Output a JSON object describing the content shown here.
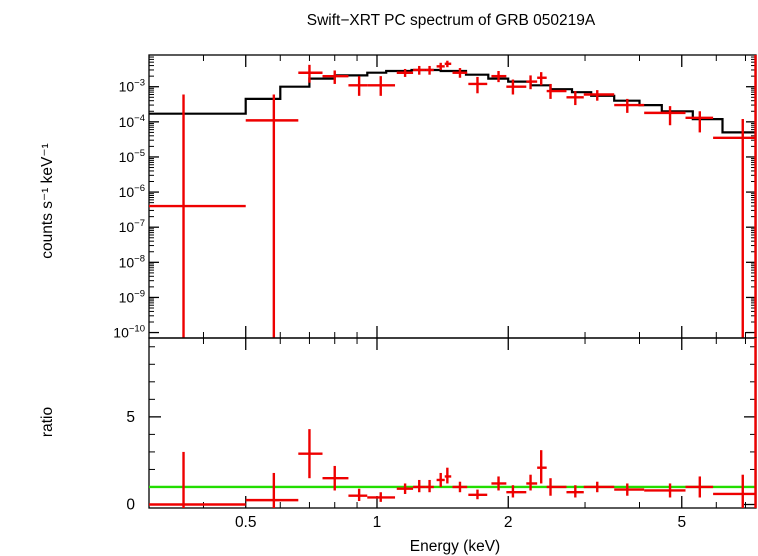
{
  "chart_data": [
    {
      "type": "scatter",
      "title": "Swift−XRT PC spectrum of GRB 050219A",
      "ylabel": "counts s⁻¹ keV⁻¹",
      "xlabel": "",
      "xscale": "log",
      "yscale": "log",
      "xlim": [
        0.3,
        7.4
      ],
      "ylim": [
        7e-11,
        0.008
      ],
      "x_ticks": [
        "0.5",
        "1",
        "2",
        "5"
      ],
      "y_ticks": [
        {
          "value": 0.001,
          "mant": "10",
          "exp": "−3"
        },
        {
          "value": 0.0001,
          "mant": "10",
          "exp": "−4"
        },
        {
          "value": 1e-05,
          "mant": "10",
          "exp": "−5"
        },
        {
          "value": 1e-06,
          "mant": "10",
          "exp": "−6"
        },
        {
          "value": 1e-07,
          "mant": "10",
          "exp": "−7"
        },
        {
          "value": 1e-08,
          "mant": "10",
          "exp": "−8"
        },
        {
          "value": 1e-09,
          "mant": "10",
          "exp": "−9"
        },
        {
          "value": 1e-10,
          "mant": "10",
          "exp": "−10"
        }
      ],
      "colors": {
        "data": "#ee0000",
        "model": "#000000"
      },
      "data_points": [
        {
          "x": 0.36,
          "xlo": 0.3,
          "xhi": 0.5,
          "y": 4e-07,
          "ylo": 7e-11,
          "yhi": 0.0006
        },
        {
          "x": 0.58,
          "xlo": 0.5,
          "xhi": 0.66,
          "y": 0.00011,
          "ylo": 7e-11,
          "yhi": 0.0006
        },
        {
          "x": 0.7,
          "xlo": 0.66,
          "xhi": 0.75,
          "y": 0.0025,
          "ylo": 0.0013,
          "yhi": 0.0042
        },
        {
          "x": 0.8,
          "xlo": 0.75,
          "xhi": 0.86,
          "y": 0.002,
          "ylo": 0.0012,
          "yhi": 0.0029
        },
        {
          "x": 0.91,
          "xlo": 0.86,
          "xhi": 0.95,
          "y": 0.0011,
          "ylo": 0.00055,
          "yhi": 0.002
        },
        {
          "x": 1.02,
          "xlo": 0.95,
          "xhi": 1.1,
          "y": 0.0011,
          "ylo": 0.00055,
          "yhi": 0.002
        },
        {
          "x": 1.16,
          "xlo": 1.11,
          "xhi": 1.21,
          "y": 0.0025,
          "ylo": 0.0019,
          "yhi": 0.0032
        },
        {
          "x": 1.25,
          "xlo": 1.21,
          "xhi": 1.29,
          "y": 0.003,
          "ylo": 0.0022,
          "yhi": 0.0039
        },
        {
          "x": 1.32,
          "xlo": 1.29,
          "xhi": 1.35,
          "y": 0.003,
          "ylo": 0.0022,
          "yhi": 0.0039
        },
        {
          "x": 1.4,
          "xlo": 1.37,
          "xhi": 1.43,
          "y": 0.0038,
          "ylo": 0.003,
          "yhi": 0.0048
        },
        {
          "x": 1.45,
          "xlo": 1.43,
          "xhi": 1.48,
          "y": 0.0045,
          "ylo": 0.0036,
          "yhi": 0.0055
        },
        {
          "x": 1.55,
          "xlo": 1.49,
          "xhi": 1.61,
          "y": 0.0025,
          "ylo": 0.0018,
          "yhi": 0.0034
        },
        {
          "x": 1.7,
          "xlo": 1.62,
          "xhi": 1.79,
          "y": 0.0012,
          "ylo": 0.00065,
          "yhi": 0.0019
        },
        {
          "x": 1.9,
          "xlo": 1.83,
          "xhi": 1.98,
          "y": 0.002,
          "ylo": 0.00135,
          "yhi": 0.0028
        },
        {
          "x": 2.05,
          "xlo": 1.98,
          "xhi": 2.2,
          "y": 0.001,
          "ylo": 0.0006,
          "yhi": 0.0016
        },
        {
          "x": 2.25,
          "xlo": 2.2,
          "xhi": 2.33,
          "y": 0.0014,
          "ylo": 0.00085,
          "yhi": 0.0021
        },
        {
          "x": 2.38,
          "xlo": 2.33,
          "xhi": 2.45,
          "y": 0.0018,
          "ylo": 0.0011,
          "yhi": 0.0026
        },
        {
          "x": 2.5,
          "xlo": 2.45,
          "xhi": 2.72,
          "y": 0.00075,
          "ylo": 0.00045,
          "yhi": 0.0012
        },
        {
          "x": 2.85,
          "xlo": 2.72,
          "xhi": 2.98,
          "y": 0.0005,
          "ylo": 0.0003,
          "yhi": 0.00075
        },
        {
          "x": 3.2,
          "xlo": 2.98,
          "xhi": 3.5,
          "y": 0.0006,
          "ylo": 0.0004,
          "yhi": 0.0008
        },
        {
          "x": 3.75,
          "xlo": 3.5,
          "xhi": 4.1,
          "y": 0.0003,
          "ylo": 0.00018,
          "yhi": 0.00045
        },
        {
          "x": 4.7,
          "xlo": 4.1,
          "xhi": 5.1,
          "y": 0.00018,
          "ylo": 8e-05,
          "yhi": 0.00028
        },
        {
          "x": 5.5,
          "xlo": 5.1,
          "xhi": 5.9,
          "y": 0.00013,
          "ylo": 5e-05,
          "yhi": 0.0002
        },
        {
          "x": 6.9,
          "xlo": 5.9,
          "xhi": 7.35,
          "y": 3.5e-05,
          "ylo": 7e-11,
          "yhi": 0.00012
        },
        {
          "x": 7.38,
          "xlo": 7.35,
          "xhi": 7.4,
          "y": 5e-05,
          "ylo": 7e-11,
          "yhi": 0.008
        }
      ],
      "model_steps": [
        {
          "xlo": 0.3,
          "xhi": 0.5,
          "y": 0.00017
        },
        {
          "xlo": 0.5,
          "xhi": 0.6,
          "y": 0.00045
        },
        {
          "xlo": 0.6,
          "xhi": 0.7,
          "y": 0.001
        },
        {
          "xlo": 0.7,
          "xhi": 0.8,
          "y": 0.0017
        },
        {
          "xlo": 0.8,
          "xhi": 0.95,
          "y": 0.0021
        },
        {
          "xlo": 0.95,
          "xhi": 1.05,
          "y": 0.0025
        },
        {
          "xlo": 1.05,
          "xhi": 1.2,
          "y": 0.0028
        },
        {
          "xlo": 1.2,
          "xhi": 1.4,
          "y": 0.003
        },
        {
          "xlo": 1.4,
          "xhi": 1.6,
          "y": 0.0028
        },
        {
          "xlo": 1.6,
          "xhi": 1.8,
          "y": 0.0022
        },
        {
          "xlo": 1.8,
          "xhi": 2.0,
          "y": 0.0017
        },
        {
          "xlo": 2.0,
          "xhi": 2.25,
          "y": 0.0014
        },
        {
          "xlo": 2.25,
          "xhi": 2.5,
          "y": 0.0011
        },
        {
          "xlo": 2.5,
          "xhi": 2.8,
          "y": 0.00085
        },
        {
          "xlo": 2.8,
          "xhi": 3.1,
          "y": 0.0007
        },
        {
          "xlo": 3.1,
          "xhi": 3.5,
          "y": 0.00055
        },
        {
          "xlo": 3.5,
          "xhi": 4.0,
          "y": 0.0004
        },
        {
          "xlo": 4.0,
          "xhi": 4.5,
          "y": 0.0003
        },
        {
          "xlo": 4.5,
          "xhi": 5.3,
          "y": 0.0002
        },
        {
          "xlo": 5.3,
          "xhi": 6.2,
          "y": 0.00012
        },
        {
          "xlo": 6.2,
          "xhi": 7.4,
          "y": 5e-05
        }
      ]
    },
    {
      "type": "scatter",
      "ylabel": "ratio",
      "xlabel": "Energy (keV)",
      "xscale": "log",
      "xlim": [
        0.3,
        7.4
      ],
      "ylim": [
        -0.2,
        9.5
      ],
      "x_ticks": [
        "0.5",
        "1",
        "2",
        "5"
      ],
      "y_ticks": [
        "0",
        "5"
      ],
      "reference_line": 1,
      "colors": {
        "data": "#ee0000",
        "reference": "#22dd00"
      },
      "data_points": [
        {
          "x": 0.36,
          "xlo": 0.3,
          "xhi": 0.5,
          "y": 0.0,
          "ylo": -0.2,
          "yhi": 3.0
        },
        {
          "x": 0.58,
          "xlo": 0.5,
          "xhi": 0.66,
          "y": 0.25,
          "ylo": -0.2,
          "yhi": 1.8
        },
        {
          "x": 0.7,
          "xlo": 0.66,
          "xhi": 0.75,
          "y": 2.9,
          "ylo": 1.5,
          "yhi": 4.3
        },
        {
          "x": 0.8,
          "xlo": 0.75,
          "xhi": 0.86,
          "y": 1.5,
          "ylo": 0.8,
          "yhi": 2.2
        },
        {
          "x": 0.91,
          "xlo": 0.86,
          "xhi": 0.95,
          "y": 0.5,
          "ylo": 0.2,
          "yhi": 0.9
        },
        {
          "x": 1.02,
          "xlo": 0.95,
          "xhi": 1.1,
          "y": 0.4,
          "ylo": 0.15,
          "yhi": 0.7
        },
        {
          "x": 1.16,
          "xlo": 1.11,
          "xhi": 1.21,
          "y": 0.9,
          "ylo": 0.6,
          "yhi": 1.2
        },
        {
          "x": 1.25,
          "xlo": 1.21,
          "xhi": 1.29,
          "y": 1.0,
          "ylo": 0.7,
          "yhi": 1.4
        },
        {
          "x": 1.32,
          "xlo": 1.29,
          "xhi": 1.35,
          "y": 1.0,
          "ylo": 0.7,
          "yhi": 1.4
        },
        {
          "x": 1.4,
          "xlo": 1.37,
          "xhi": 1.43,
          "y": 1.4,
          "ylo": 1.0,
          "yhi": 1.8
        },
        {
          "x": 1.45,
          "xlo": 1.43,
          "xhi": 1.48,
          "y": 1.6,
          "ylo": 1.2,
          "yhi": 2.1
        },
        {
          "x": 1.55,
          "xlo": 1.49,
          "xhi": 1.61,
          "y": 1.0,
          "ylo": 0.7,
          "yhi": 1.3
        },
        {
          "x": 1.7,
          "xlo": 1.62,
          "xhi": 1.79,
          "y": 0.55,
          "ylo": 0.3,
          "yhi": 0.85
        },
        {
          "x": 1.9,
          "xlo": 1.83,
          "xhi": 1.98,
          "y": 1.2,
          "ylo": 0.8,
          "yhi": 1.6
        },
        {
          "x": 2.05,
          "xlo": 1.98,
          "xhi": 2.2,
          "y": 0.7,
          "ylo": 0.4,
          "yhi": 1.1
        },
        {
          "x": 2.25,
          "xlo": 2.2,
          "xhi": 2.33,
          "y": 1.2,
          "ylo": 0.8,
          "yhi": 1.7
        },
        {
          "x": 2.38,
          "xlo": 2.33,
          "xhi": 2.45,
          "y": 2.1,
          "ylo": 1.2,
          "yhi": 3.1
        },
        {
          "x": 2.5,
          "xlo": 2.45,
          "xhi": 2.72,
          "y": 1.0,
          "ylo": 0.5,
          "yhi": 1.5
        },
        {
          "x": 2.85,
          "xlo": 2.72,
          "xhi": 2.98,
          "y": 0.7,
          "ylo": 0.4,
          "yhi": 1.1
        },
        {
          "x": 3.2,
          "xlo": 2.98,
          "xhi": 3.5,
          "y": 1.0,
          "ylo": 0.7,
          "yhi": 1.3
        },
        {
          "x": 3.75,
          "xlo": 3.5,
          "xhi": 4.1,
          "y": 0.85,
          "ylo": 0.5,
          "yhi": 1.2
        },
        {
          "x": 4.7,
          "xlo": 4.1,
          "xhi": 5.1,
          "y": 0.8,
          "ylo": 0.4,
          "yhi": 1.2
        },
        {
          "x": 5.5,
          "xlo": 5.1,
          "xhi": 5.9,
          "y": 1.0,
          "ylo": 0.4,
          "yhi": 1.6
        },
        {
          "x": 6.9,
          "xlo": 5.9,
          "xhi": 7.35,
          "y": 0.6,
          "ylo": -0.2,
          "yhi": 1.7
        },
        {
          "x": 7.38,
          "xlo": 7.35,
          "xhi": 7.4,
          "y": 0.8,
          "ylo": -0.2,
          "yhi": 9.5
        }
      ]
    }
  ]
}
